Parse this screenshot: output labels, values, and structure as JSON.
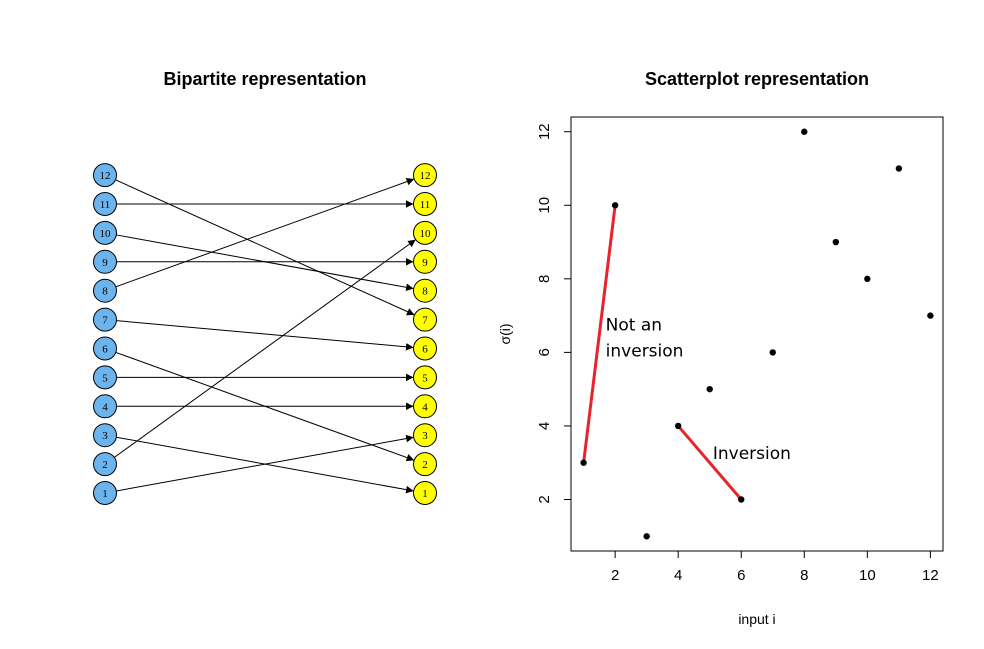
{
  "chart_data": [
    {
      "type": "bipartite",
      "title": "Bipartite representation",
      "left_nodes": [
        1,
        2,
        3,
        4,
        5,
        6,
        7,
        8,
        9,
        10,
        11,
        12
      ],
      "right_nodes": [
        1,
        2,
        3,
        4,
        5,
        6,
        7,
        8,
        9,
        10,
        11,
        12
      ],
      "left_color": "#6CB4EE",
      "right_color": "#FFFF00",
      "edges": [
        {
          "from": 1,
          "to": 3
        },
        {
          "from": 2,
          "to": 10
        },
        {
          "from": 3,
          "to": 1
        },
        {
          "from": 4,
          "to": 4
        },
        {
          "from": 5,
          "to": 5
        },
        {
          "from": 6,
          "to": 2
        },
        {
          "from": 7,
          "to": 6
        },
        {
          "from": 8,
          "to": 12
        },
        {
          "from": 9,
          "to": 9
        },
        {
          "from": 10,
          "to": 8
        },
        {
          "from": 11,
          "to": 11
        },
        {
          "from": 12,
          "to": 7
        }
      ]
    },
    {
      "type": "scatter",
      "title": "Scatterplot representation",
      "xlabel": "input i",
      "ylabel": "σ(i)",
      "xlim": [
        0.6,
        12.4
      ],
      "ylim": [
        0.6,
        12.4
      ],
      "xticks": [
        2,
        4,
        6,
        8,
        10,
        12
      ],
      "yticks": [
        2,
        4,
        6,
        8,
        10,
        12
      ],
      "x": [
        1,
        2,
        3,
        4,
        5,
        6,
        7,
        8,
        9,
        10,
        11,
        12
      ],
      "y": [
        3,
        10,
        1,
        4,
        5,
        2,
        6,
        12,
        9,
        8,
        11,
        7
      ],
      "highlight_color": "#E8232B",
      "segments": [
        {
          "from": [
            1,
            3
          ],
          "to": [
            2,
            10
          ]
        },
        {
          "from": [
            4,
            4
          ],
          "to": [
            6,
            2
          ]
        }
      ],
      "annotations": [
        {
          "lines": [
            "Not an",
            "inversion"
          ],
          "x": 1.7,
          "y": 6.6
        },
        {
          "lines": [
            "Inversion"
          ],
          "x": 5.1,
          "y": 3.1
        }
      ]
    }
  ]
}
